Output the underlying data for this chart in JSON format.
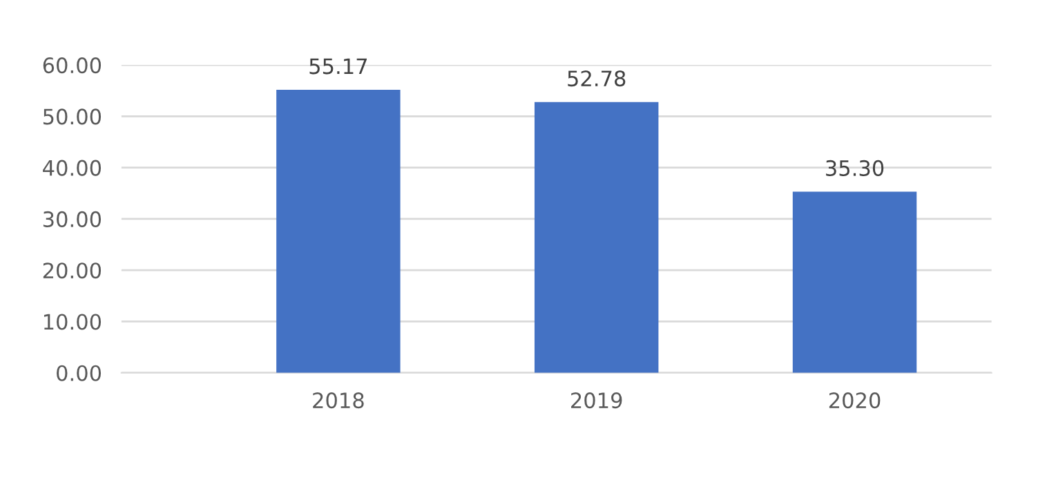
{
  "chart_data": {
    "type": "bar",
    "categories": [
      "2018",
      "2019",
      "2020"
    ],
    "values": [
      55.17,
      52.78,
      35.3
    ],
    "value_labels": [
      "55.17",
      "52.78",
      "35.30"
    ],
    "color": "#4472c4",
    "ylim": [
      0,
      60
    ],
    "yticks": [
      {
        "value": 0,
        "label": "0.00"
      },
      {
        "value": 10,
        "label": "10.00"
      },
      {
        "value": 20,
        "label": "20.00"
      },
      {
        "value": 30,
        "label": "30.00"
      },
      {
        "value": 40,
        "label": "40.00"
      },
      {
        "value": 50,
        "label": "50.00"
      },
      {
        "value": 60,
        "label": "60.00"
      }
    ],
    "grid": "y",
    "legend": false
  }
}
